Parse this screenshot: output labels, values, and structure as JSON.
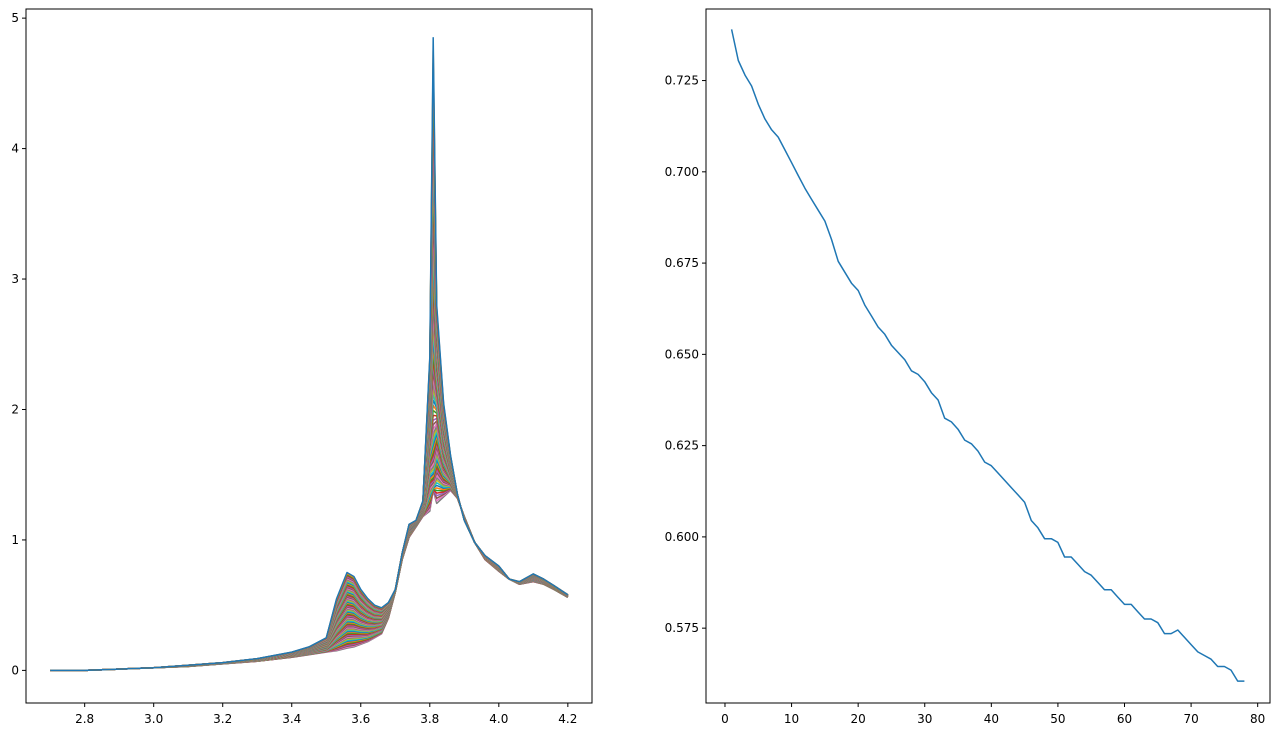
{
  "chart_data": [
    {
      "type": "line",
      "title": "",
      "xlabel": "",
      "ylabel": "",
      "xlim": [
        2.63,
        4.27
      ],
      "ylim": [
        -0.25,
        5.07
      ],
      "xticks": [
        2.8,
        3.0,
        3.2,
        3.4,
        3.6,
        3.8,
        4.0,
        4.2
      ],
      "xtick_labels": [
        "2.8",
        "3.0",
        "3.2",
        "3.4",
        "3.6",
        "3.8",
        "4.0",
        "4.2"
      ],
      "yticks": [
        0,
        1,
        2,
        3,
        4,
        5
      ],
      "ytick_labels": [
        "0",
        "1",
        "2",
        "3",
        "4",
        "5"
      ],
      "grid": false,
      "legend": "none",
      "series_count": 78,
      "color_cycle": [
        "#1f77b4",
        "#ff7f0e",
        "#2ca02c",
        "#d62728",
        "#9467bd",
        "#8c564b",
        "#e377c2",
        "#7f7f7f",
        "#bcbd22",
        "#17becf"
      ],
      "peak_heights": {
        "first": 4.85,
        "last": 1.38
      },
      "x": [
        2.7,
        2.8,
        2.9,
        3.0,
        3.1,
        3.2,
        3.3,
        3.4,
        3.45,
        3.5,
        3.53,
        3.56,
        3.58,
        3.6,
        3.62,
        3.64,
        3.66,
        3.68,
        3.7,
        3.72,
        3.74,
        3.76,
        3.78,
        3.8,
        3.81,
        3.82,
        3.84,
        3.86,
        3.88,
        3.9,
        3.93,
        3.96,
        4.0,
        4.03,
        4.06,
        4.1,
        4.13,
        4.16,
        4.2
      ],
      "series_first": [
        0.0,
        0.0,
        0.01,
        0.02,
        0.04,
        0.06,
        0.09,
        0.14,
        0.18,
        0.25,
        0.55,
        0.75,
        0.72,
        0.62,
        0.55,
        0.5,
        0.48,
        0.52,
        0.62,
        0.9,
        1.12,
        1.15,
        1.3,
        2.4,
        4.85,
        2.8,
        2.05,
        1.65,
        1.35,
        1.15,
        0.98,
        0.88,
        0.8,
        0.7,
        0.68,
        0.74,
        0.7,
        0.65,
        0.58
      ],
      "series_last": [
        0.0,
        0.0,
        0.01,
        0.02,
        0.03,
        0.05,
        0.07,
        0.1,
        0.12,
        0.14,
        0.15,
        0.17,
        0.18,
        0.2,
        0.22,
        0.25,
        0.28,
        0.4,
        0.6,
        0.85,
        1.02,
        1.1,
        1.18,
        1.22,
        1.25,
        1.28,
        1.33,
        1.38,
        1.32,
        1.18,
        0.98,
        0.85,
        0.76,
        0.7,
        0.66,
        0.68,
        0.66,
        0.62,
        0.56
      ]
    },
    {
      "type": "line",
      "title": "",
      "xlabel": "",
      "ylabel": "",
      "xlim": [
        -2.85,
        81.85
      ],
      "ylim": [
        0.5545,
        0.7446
      ],
      "xticks": [
        0,
        10,
        20,
        30,
        40,
        50,
        60,
        70,
        80
      ],
      "xtick_labels": [
        "0",
        "10",
        "20",
        "30",
        "40",
        "50",
        "60",
        "70",
        "80"
      ],
      "yticks": [
        0.575,
        0.6,
        0.625,
        0.65,
        0.675,
        0.7,
        0.725
      ],
      "ytick_labels": [
        "0.575",
        "0.600",
        "0.625",
        "0.650",
        "0.675",
        "0.700",
        "0.725"
      ],
      "grid": false,
      "legend": "none",
      "color": "#1f77b4",
      "x": [
        1,
        2,
        3,
        4,
        5,
        6,
        7,
        8,
        9,
        10,
        11,
        12,
        13,
        14,
        15,
        16,
        17,
        18,
        19,
        20,
        21,
        22,
        23,
        24,
        25,
        26,
        27,
        28,
        29,
        30,
        31,
        32,
        33,
        34,
        35,
        36,
        37,
        38,
        39,
        40,
        41,
        42,
        43,
        44,
        45,
        46,
        47,
        48,
        49,
        50,
        51,
        52,
        53,
        54,
        55,
        56,
        57,
        58,
        59,
        60,
        61,
        62,
        63,
        64,
        65,
        66,
        67,
        68,
        69,
        70,
        71,
        72,
        73,
        74,
        75,
        76,
        77,
        78
      ],
      "y": [
        0.739,
        0.7305,
        0.7265,
        0.7235,
        0.7185,
        0.7145,
        0.7115,
        0.7095,
        0.706,
        0.7025,
        0.699,
        0.6955,
        0.6925,
        0.6895,
        0.6865,
        0.6815,
        0.6755,
        0.6725,
        0.6695,
        0.6675,
        0.6635,
        0.6605,
        0.6575,
        0.6555,
        0.6525,
        0.6505,
        0.6485,
        0.6455,
        0.6445,
        0.6425,
        0.6395,
        0.6375,
        0.6325,
        0.6315,
        0.6295,
        0.6265,
        0.6255,
        0.6235,
        0.6205,
        0.6195,
        0.6175,
        0.6155,
        0.6135,
        0.6115,
        0.6095,
        0.6045,
        0.6025,
        0.5995,
        0.5995,
        0.5985,
        0.5945,
        0.5945,
        0.5925,
        0.5905,
        0.5895,
        0.5875,
        0.5855,
        0.5855,
        0.5835,
        0.5815,
        0.5815,
        0.5795,
        0.5775,
        0.5775,
        0.5765,
        0.5735,
        0.5735,
        0.5745,
        0.5725,
        0.5705,
        0.5685,
        0.5675,
        0.5665,
        0.5645,
        0.5645,
        0.5635,
        0.5605,
        0.5605
      ]
    }
  ]
}
